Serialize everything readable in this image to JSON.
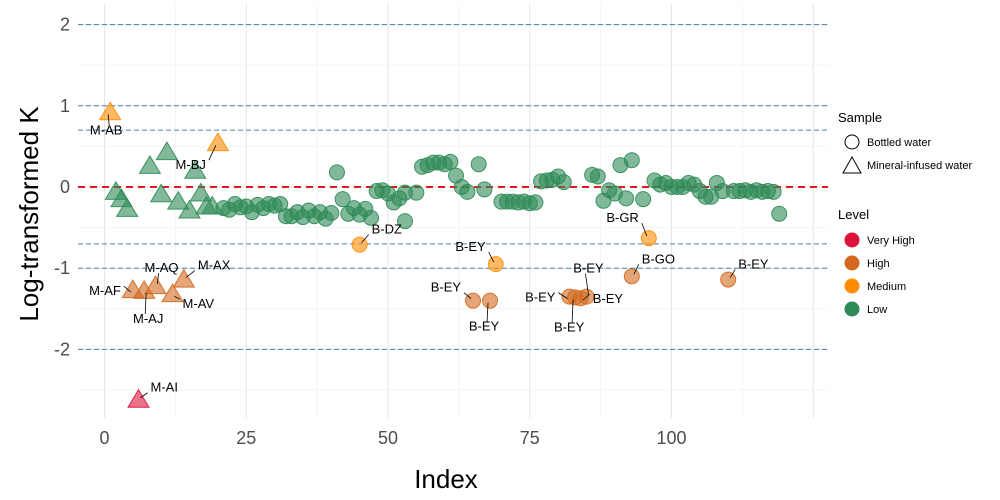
{
  "chart_data": {
    "type": "scatter",
    "xlabel": "Index",
    "ylabel": "Log-transformed K",
    "xlim": [
      -5,
      125
    ],
    "ylim": [
      -2.9,
      2.2
    ],
    "x_ticks": [
      0,
      25,
      50,
      75,
      100
    ],
    "y_ticks": [
      -2,
      -1,
      0,
      1,
      2
    ],
    "grid": true,
    "reference_lines": [
      {
        "y": 0,
        "style": "dashed",
        "color": "#e41a1c"
      },
      {
        "y": 2,
        "style": "dashed",
        "color": "#4682b4"
      },
      {
        "y": 1,
        "style": "dashed",
        "color": "#4682b4"
      },
      {
        "y": 0.7,
        "style": "dashed",
        "color": "#4682b4"
      },
      {
        "y": -0.7,
        "style": "dashed",
        "color": "#4682b4"
      },
      {
        "y": -1,
        "style": "dashed",
        "color": "#4682b4"
      },
      {
        "y": -2,
        "style": "dashed",
        "color": "#4682b4"
      }
    ],
    "legend": {
      "placement": "right",
      "sample_title": "Sample",
      "sample_items": [
        {
          "label": "Bottled water",
          "shape": "circle"
        },
        {
          "label": "Mineral-infused water",
          "shape": "triangle"
        }
      ],
      "level_title": "Level",
      "level_items": [
        {
          "label": "Very High",
          "color": "#dc143c"
        },
        {
          "label": "High",
          "color": "#d2691e"
        },
        {
          "label": "Medium",
          "color": "#ff8c00"
        },
        {
          "label": "Low",
          "color": "#2e8b57"
        }
      ]
    },
    "points": [
      {
        "x": 1,
        "y": 0.92,
        "shape": "triangle",
        "level": "Medium"
      },
      {
        "x": 2,
        "y": -0.06,
        "shape": "triangle",
        "level": "Low"
      },
      {
        "x": 3,
        "y": -0.15,
        "shape": "triangle",
        "level": "Low"
      },
      {
        "x": 4,
        "y": -0.27,
        "shape": "triangle",
        "level": "Low"
      },
      {
        "x": 5,
        "y": -1.27,
        "shape": "triangle",
        "level": "High"
      },
      {
        "x": 6,
        "y": -2.62,
        "shape": "triangle",
        "level": "Very High"
      },
      {
        "x": 7,
        "y": -1.28,
        "shape": "triangle",
        "level": "High"
      },
      {
        "x": 8,
        "y": 0.26,
        "shape": "triangle",
        "level": "Low"
      },
      {
        "x": 9,
        "y": -1.22,
        "shape": "triangle",
        "level": "High"
      },
      {
        "x": 10,
        "y": -0.09,
        "shape": "triangle",
        "level": "Low"
      },
      {
        "x": 11,
        "y": 0.43,
        "shape": "triangle",
        "level": "Low"
      },
      {
        "x": 12,
        "y": -1.32,
        "shape": "triangle",
        "level": "High"
      },
      {
        "x": 13,
        "y": -0.18,
        "shape": "triangle",
        "level": "Low"
      },
      {
        "x": 14,
        "y": -1.14,
        "shape": "triangle",
        "level": "High"
      },
      {
        "x": 15,
        "y": -0.29,
        "shape": "triangle",
        "level": "Low"
      },
      {
        "x": 16,
        "y": 0.2,
        "shape": "triangle",
        "level": "Low"
      },
      {
        "x": 17,
        "y": -0.08,
        "shape": "triangle",
        "level": "Low"
      },
      {
        "x": 18,
        "y": -0.24,
        "shape": "triangle",
        "level": "Low"
      },
      {
        "x": 19,
        "y": -0.24,
        "shape": "triangle",
        "level": "Low"
      },
      {
        "x": 20,
        "y": 0.54,
        "shape": "triangle",
        "level": "Medium"
      },
      {
        "x": 21,
        "y": -0.26,
        "shape": "circle",
        "level": "Low"
      },
      {
        "x": 22,
        "y": -0.28,
        "shape": "circle",
        "level": "Low"
      },
      {
        "x": 23,
        "y": -0.21,
        "shape": "circle",
        "level": "Low"
      },
      {
        "x": 24,
        "y": -0.25,
        "shape": "circle",
        "level": "Low"
      },
      {
        "x": 25,
        "y": -0.24,
        "shape": "circle",
        "level": "Low"
      },
      {
        "x": 26,
        "y": -0.31,
        "shape": "circle",
        "level": "Low"
      },
      {
        "x": 27,
        "y": -0.22,
        "shape": "circle",
        "level": "Low"
      },
      {
        "x": 28,
        "y": -0.26,
        "shape": "circle",
        "level": "Low"
      },
      {
        "x": 29,
        "y": -0.21,
        "shape": "circle",
        "level": "Low"
      },
      {
        "x": 30,
        "y": -0.23,
        "shape": "circle",
        "level": "Low"
      },
      {
        "x": 31,
        "y": -0.21,
        "shape": "circle",
        "level": "Low"
      },
      {
        "x": 32,
        "y": -0.36,
        "shape": "circle",
        "level": "Low"
      },
      {
        "x": 33,
        "y": -0.36,
        "shape": "circle",
        "level": "Low"
      },
      {
        "x": 34,
        "y": -0.31,
        "shape": "circle",
        "level": "Low"
      },
      {
        "x": 35,
        "y": -0.37,
        "shape": "circle",
        "level": "Low"
      },
      {
        "x": 36,
        "y": -0.29,
        "shape": "circle",
        "level": "Low"
      },
      {
        "x": 37,
        "y": -0.36,
        "shape": "circle",
        "level": "Low"
      },
      {
        "x": 38,
        "y": -0.31,
        "shape": "circle",
        "level": "Low"
      },
      {
        "x": 39,
        "y": -0.39,
        "shape": "circle",
        "level": "Low"
      },
      {
        "x": 40,
        "y": -0.32,
        "shape": "circle",
        "level": "Low"
      },
      {
        "x": 41,
        "y": 0.18,
        "shape": "circle",
        "level": "Low"
      },
      {
        "x": 42,
        "y": -0.15,
        "shape": "circle",
        "level": "Low"
      },
      {
        "x": 43,
        "y": -0.33,
        "shape": "circle",
        "level": "Low"
      },
      {
        "x": 44,
        "y": -0.26,
        "shape": "circle",
        "level": "Low"
      },
      {
        "x": 45,
        "y": -0.34,
        "shape": "circle",
        "level": "Low"
      },
      {
        "x": 45,
        "y": -0.71,
        "shape": "circle",
        "level": "Medium"
      },
      {
        "x": 46,
        "y": -0.27,
        "shape": "circle",
        "level": "Low"
      },
      {
        "x": 47,
        "y": -0.38,
        "shape": "circle",
        "level": "Low"
      },
      {
        "x": 48,
        "y": -0.05,
        "shape": "circle",
        "level": "Low"
      },
      {
        "x": 49,
        "y": -0.04,
        "shape": "circle",
        "level": "Low"
      },
      {
        "x": 50,
        "y": -0.08,
        "shape": "circle",
        "level": "Low"
      },
      {
        "x": 51,
        "y": -0.19,
        "shape": "circle",
        "level": "Low"
      },
      {
        "x": 52,
        "y": -0.14,
        "shape": "circle",
        "level": "Low"
      },
      {
        "x": 53,
        "y": -0.42,
        "shape": "circle",
        "level": "Low"
      },
      {
        "x": 53,
        "y": -0.07,
        "shape": "circle",
        "level": "Low"
      },
      {
        "x": 55,
        "y": -0.07,
        "shape": "circle",
        "level": "Low"
      },
      {
        "x": 56,
        "y": 0.25,
        "shape": "circle",
        "level": "Low"
      },
      {
        "x": 57,
        "y": 0.27,
        "shape": "circle",
        "level": "Low"
      },
      {
        "x": 58,
        "y": 0.3,
        "shape": "circle",
        "level": "Low"
      },
      {
        "x": 59,
        "y": 0.3,
        "shape": "circle",
        "level": "Low"
      },
      {
        "x": 60,
        "y": 0.28,
        "shape": "circle",
        "level": "Low"
      },
      {
        "x": 61,
        "y": 0.31,
        "shape": "circle",
        "level": "Low"
      },
      {
        "x": 62,
        "y": 0.14,
        "shape": "circle",
        "level": "Low"
      },
      {
        "x": 63,
        "y": 0.0,
        "shape": "circle",
        "level": "Low"
      },
      {
        "x": 64,
        "y": -0.06,
        "shape": "circle",
        "level": "Low"
      },
      {
        "x": 65,
        "y": -1.4,
        "shape": "circle",
        "level": "High"
      },
      {
        "x": 66,
        "y": 0.28,
        "shape": "circle",
        "level": "Low"
      },
      {
        "x": 67,
        "y": -0.03,
        "shape": "circle",
        "level": "Low"
      },
      {
        "x": 68,
        "y": -1.4,
        "shape": "circle",
        "level": "High"
      },
      {
        "x": 69,
        "y": -0.95,
        "shape": "circle",
        "level": "Medium"
      },
      {
        "x": 70,
        "y": -0.18,
        "shape": "circle",
        "level": "Low"
      },
      {
        "x": 71,
        "y": -0.18,
        "shape": "circle",
        "level": "Low"
      },
      {
        "x": 72,
        "y": -0.18,
        "shape": "circle",
        "level": "Low"
      },
      {
        "x": 73,
        "y": -0.19,
        "shape": "circle",
        "level": "Low"
      },
      {
        "x": 74,
        "y": -0.18,
        "shape": "circle",
        "level": "Low"
      },
      {
        "x": 75,
        "y": -0.2,
        "shape": "circle",
        "level": "Low"
      },
      {
        "x": 76,
        "y": -0.19,
        "shape": "circle",
        "level": "Low"
      },
      {
        "x": 77,
        "y": 0.07,
        "shape": "circle",
        "level": "Low"
      },
      {
        "x": 78,
        "y": 0.08,
        "shape": "circle",
        "level": "Low"
      },
      {
        "x": 79,
        "y": 0.09,
        "shape": "circle",
        "level": "Low"
      },
      {
        "x": 80,
        "y": 0.13,
        "shape": "circle",
        "level": "Low"
      },
      {
        "x": 81,
        "y": 0.06,
        "shape": "circle",
        "level": "Low"
      },
      {
        "x": 82,
        "y": -1.35,
        "shape": "circle",
        "level": "High"
      },
      {
        "x": 83,
        "y": -1.36,
        "shape": "circle",
        "level": "High"
      },
      {
        "x": 84,
        "y": -1.37,
        "shape": "circle",
        "level": "High"
      },
      {
        "x": 85,
        "y": -1.35,
        "shape": "circle",
        "level": "High"
      },
      {
        "x": 86,
        "y": 0.15,
        "shape": "circle",
        "level": "Low"
      },
      {
        "x": 87,
        "y": 0.13,
        "shape": "circle",
        "level": "Low"
      },
      {
        "x": 88,
        "y": -0.17,
        "shape": "circle",
        "level": "Low"
      },
      {
        "x": 89,
        "y": -0.04,
        "shape": "circle",
        "level": "Low"
      },
      {
        "x": 90,
        "y": -0.08,
        "shape": "circle",
        "level": "Low"
      },
      {
        "x": 91,
        "y": 0.27,
        "shape": "circle",
        "level": "Low"
      },
      {
        "x": 92,
        "y": -0.14,
        "shape": "circle",
        "level": "Low"
      },
      {
        "x": 93,
        "y": 0.33,
        "shape": "circle",
        "level": "Low"
      },
      {
        "x": 93,
        "y": -1.1,
        "shape": "circle",
        "level": "High"
      },
      {
        "x": 95,
        "y": -0.15,
        "shape": "circle",
        "level": "Low"
      },
      {
        "x": 96,
        "y": -0.63,
        "shape": "circle",
        "level": "Medium"
      },
      {
        "x": 97,
        "y": 0.08,
        "shape": "circle",
        "level": "Low"
      },
      {
        "x": 98,
        "y": 0.03,
        "shape": "circle",
        "level": "Low"
      },
      {
        "x": 99,
        "y": 0.05,
        "shape": "circle",
        "level": "Low"
      },
      {
        "x": 100,
        "y": 0.0,
        "shape": "circle",
        "level": "Low"
      },
      {
        "x": 101,
        "y": 0.0,
        "shape": "circle",
        "level": "Low"
      },
      {
        "x": 102,
        "y": 0.0,
        "shape": "circle",
        "level": "Low"
      },
      {
        "x": 103,
        "y": 0.05,
        "shape": "circle",
        "level": "Low"
      },
      {
        "x": 104,
        "y": 0.03,
        "shape": "circle",
        "level": "Low"
      },
      {
        "x": 105,
        "y": -0.05,
        "shape": "circle",
        "level": "Low"
      },
      {
        "x": 106,
        "y": -0.12,
        "shape": "circle",
        "level": "Low"
      },
      {
        "x": 107,
        "y": -0.12,
        "shape": "circle",
        "level": "Low"
      },
      {
        "x": 108,
        "y": 0.05,
        "shape": "circle",
        "level": "Low"
      },
      {
        "x": 109,
        "y": -0.05,
        "shape": "circle",
        "level": "Low"
      },
      {
        "x": 110,
        "y": -1.14,
        "shape": "circle",
        "level": "High"
      },
      {
        "x": 111,
        "y": -0.05,
        "shape": "circle",
        "level": "Low"
      },
      {
        "x": 112,
        "y": -0.05,
        "shape": "circle",
        "level": "Low"
      },
      {
        "x": 113,
        "y": -0.04,
        "shape": "circle",
        "level": "Low"
      },
      {
        "x": 114,
        "y": -0.06,
        "shape": "circle",
        "level": "Low"
      },
      {
        "x": 115,
        "y": -0.04,
        "shape": "circle",
        "level": "Low"
      },
      {
        "x": 116,
        "y": -0.06,
        "shape": "circle",
        "level": "Low"
      },
      {
        "x": 117,
        "y": -0.05,
        "shape": "circle",
        "level": "Low"
      },
      {
        "x": 118,
        "y": -0.06,
        "shape": "circle",
        "level": "Low"
      },
      {
        "x": 119,
        "y": -0.33,
        "shape": "circle",
        "level": "Low"
      }
    ],
    "annotations": [
      {
        "text": "M-AB",
        "x": 1,
        "y": 0.92
      },
      {
        "text": "M-BJ",
        "x": 20,
        "y": 0.54
      },
      {
        "text": "M-AQ",
        "x": 9,
        "y": -1.22
      },
      {
        "text": "M-AX",
        "x": 14,
        "y": -1.14
      },
      {
        "text": "M-AF",
        "x": 5,
        "y": -1.27
      },
      {
        "text": "M-AV",
        "x": 12,
        "y": -1.32
      },
      {
        "text": "M-AJ",
        "x": 7,
        "y": -1.28
      },
      {
        "text": "M-AI",
        "x": 6,
        "y": -2.62
      },
      {
        "text": "B-DZ",
        "x": 45,
        "y": -0.71
      },
      {
        "text": "B-EY",
        "x": 69,
        "y": -0.95
      },
      {
        "text": "B-EY",
        "x": 65,
        "y": -1.4
      },
      {
        "text": "B-EY",
        "x": 68,
        "y": -1.4
      },
      {
        "text": "B-EY",
        "x": 82,
        "y": -1.35
      },
      {
        "text": "B-EY",
        "x": 84,
        "y": -1.37
      },
      {
        "text": "B-EY",
        "x": 85,
        "y": -1.35
      },
      {
        "text": "B-EY",
        "x": 83,
        "y": -1.36
      },
      {
        "text": "B-GR",
        "x": 96,
        "y": -0.63
      },
      {
        "text": "B-GO",
        "x": 93,
        "y": -1.1
      },
      {
        "text": "B-EY",
        "x": 110,
        "y": -1.14
      }
    ]
  }
}
